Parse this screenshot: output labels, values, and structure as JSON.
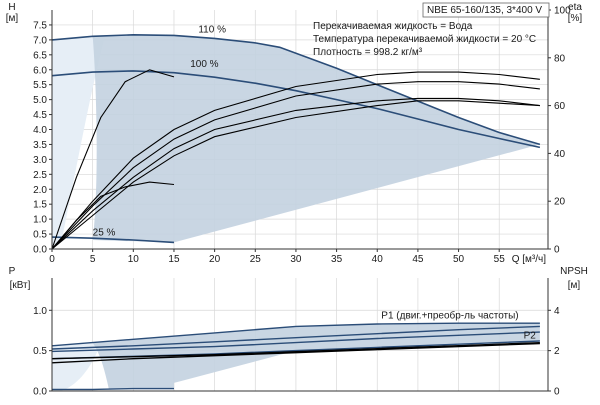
{
  "title_box": "NBE 65-160/135, 3*400 V",
  "info_lines": [
    "Перекачиваемая жидкость = Вода",
    "Температура перекачиваемой жидкости = 20 °C",
    "Плотность = 998.2 кг/м³"
  ],
  "colors": {
    "envelope_fill": "#c3d2e0",
    "envelope_light": "#e6eef6",
    "pump_curve": "#2b4d78",
    "efficiency_curve": "#000000",
    "npsh_curve": "#000000",
    "grid": "#d8d8d8"
  },
  "chart_data": [
    {
      "type": "line",
      "title": "",
      "xlabel": "Q [м³/ч]",
      "ylabel": "H\n[м]",
      "y2label": "eta\n[%]",
      "xlim": [
        0,
        61
      ],
      "ylim": [
        0,
        8
      ],
      "y2lim": [
        0,
        100
      ],
      "xticks": [
        "0",
        "5",
        "10",
        "15",
        "20",
        "25",
        "30",
        "35",
        "40",
        "45",
        "50",
        "55"
      ],
      "yticks": [
        "0.0",
        "0.5",
        "1.0",
        "1.5",
        "2.0",
        "2.5",
        "3.0",
        "3.5",
        "4.0",
        "4.5",
        "5.0",
        "5.5",
        "6.0",
        "6.5",
        "7.0",
        "7.5"
      ],
      "y2ticks": [
        "0",
        "20",
        "40",
        "60",
        "80",
        "100"
      ],
      "grid": true,
      "annotations": [
        "110 %",
        "100 %",
        "25 %"
      ],
      "head_series": [
        {
          "name": "110 %",
          "x": [
            0,
            5,
            10,
            15,
            20,
            25,
            28,
            35,
            40,
            45,
            50,
            55,
            60
          ],
          "y": [
            7.0,
            7.12,
            7.17,
            7.15,
            7.05,
            6.9,
            6.75,
            6.05,
            5.5,
            4.95,
            4.4,
            3.9,
            3.5
          ]
        },
        {
          "name": "100 %",
          "x": [
            0,
            5,
            10,
            15,
            20,
            25,
            30,
            35,
            40,
            45,
            50,
            55,
            60
          ],
          "y": [
            5.8,
            5.92,
            5.96,
            5.9,
            5.75,
            5.55,
            5.3,
            5.0,
            4.7,
            4.35,
            4.0,
            3.7,
            3.4
          ]
        },
        {
          "name": "25 %",
          "x": [
            0,
            5,
            10,
            15
          ],
          "y": [
            0.4,
            0.36,
            0.3,
            0.22
          ]
        }
      ],
      "efficiency_series": [
        {
          "x": [
            0,
            5,
            10,
            15,
            20,
            30,
            40,
            45,
            50,
            55,
            60
          ],
          "y": [
            0,
            20,
            38,
            50,
            58,
            68,
            73,
            74,
            74,
            73,
            71
          ]
        },
        {
          "x": [
            0,
            5,
            10,
            15,
            20,
            30,
            40,
            45,
            50,
            55,
            60
          ],
          "y": [
            0,
            18,
            34,
            46,
            54,
            64,
            69,
            70,
            70,
            69,
            67
          ]
        },
        {
          "x": [
            0,
            5,
            10,
            15,
            20,
            30,
            40,
            45,
            50,
            55,
            60
          ],
          "y": [
            0,
            16,
            30,
            42,
            50,
            58,
            62,
            63,
            63,
            62,
            60
          ]
        },
        {
          "x": [
            0,
            5,
            10,
            15,
            20,
            30,
            40,
            45,
            50,
            55,
            60
          ],
          "y": [
            0,
            14,
            28,
            39,
            47,
            55,
            60,
            62,
            62,
            61,
            60
          ]
        },
        {
          "x": [
            0,
            3,
            6,
            9,
            12,
            15
          ],
          "y": [
            0,
            30,
            55,
            70,
            75,
            72
          ]
        },
        {
          "x": [
            0,
            3,
            6,
            9,
            12,
            15
          ],
          "y": [
            0,
            12,
            22,
            26,
            28,
            27
          ]
        }
      ]
    },
    {
      "type": "line",
      "title": "",
      "ylabel": "P\n[кВт]",
      "y2label": "NPSH\n[м]",
      "xlim": [
        0,
        61
      ],
      "ylim": [
        0,
        1.4
      ],
      "y2lim": [
        0,
        5.6
      ],
      "yticks": [
        "0.0",
        "0.5",
        "1.0"
      ],
      "y2ticks": [
        "0",
        "2",
        "4"
      ],
      "grid": true,
      "legend": [
        "P1 (двиг.+преобр-ль частоты)",
        "P2"
      ],
      "power_series": [
        {
          "name": "P1 (двиг.+преобр-ль частоты)",
          "x": [
            0,
            10,
            20,
            30,
            40,
            50,
            60
          ],
          "y": [
            0.56,
            0.64,
            0.72,
            0.8,
            0.83,
            0.84,
            0.84
          ]
        },
        {
          "x": [
            0,
            10,
            20,
            30,
            40,
            50,
            60
          ],
          "y": [
            0.52,
            0.56,
            0.61,
            0.66,
            0.71,
            0.76,
            0.8
          ]
        },
        {
          "x": [
            0,
            10,
            20,
            30,
            40,
            50,
            60
          ],
          "y": [
            0.49,
            0.52,
            0.55,
            0.6,
            0.65,
            0.69,
            0.73
          ]
        },
        {
          "name": "P2",
          "x": [
            0,
            10,
            20,
            30,
            40,
            50,
            60
          ],
          "y": [
            0.4,
            0.43,
            0.46,
            0.5,
            0.54,
            0.58,
            0.62
          ]
        },
        {
          "x": [
            0,
            5,
            10,
            15
          ],
          "y": [
            0.02,
            0.02,
            0.03,
            0.03
          ]
        }
      ],
      "npsh_series": [
        {
          "x": [
            0,
            10,
            20,
            30,
            40,
            50,
            60
          ],
          "y": [
            1.6,
            1.7,
            1.8,
            1.95,
            2.1,
            2.25,
            2.4
          ]
        },
        {
          "x": [
            0,
            10,
            20,
            30,
            40,
            50,
            60
          ],
          "y": [
            1.4,
            1.6,
            1.75,
            1.9,
            2.05,
            2.2,
            2.35
          ]
        }
      ]
    }
  ]
}
